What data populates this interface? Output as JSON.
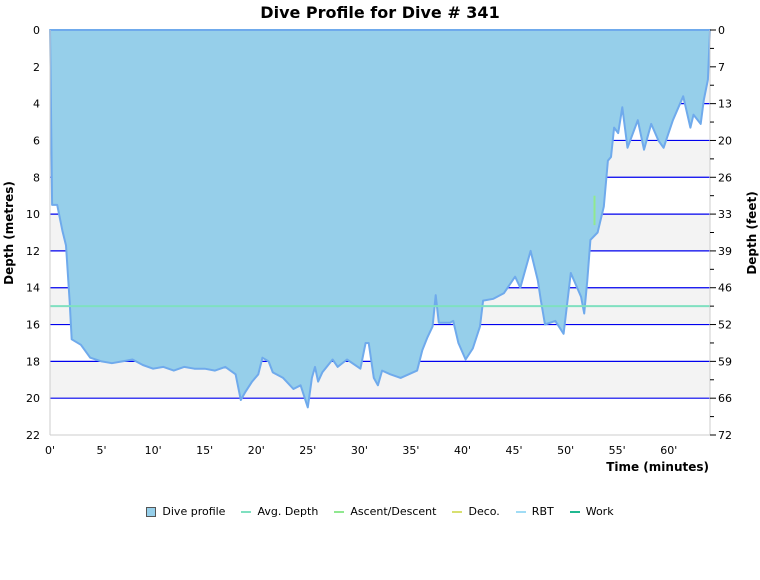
{
  "chart_data": {
    "type": "area",
    "title": "Dive Profile for Dive # 341",
    "xlabel": "Time (minutes)",
    "ylabel": "Depth (metres)",
    "ylabel_right": "Depth (feet)",
    "xlim": [
      0,
      64
    ],
    "ylim": [
      0,
      22
    ],
    "y_inverted": true,
    "x_ticks": [
      "0'",
      "5'",
      "10'",
      "15'",
      "20'",
      "25'",
      "30'",
      "35'",
      "40'",
      "45'",
      "50'",
      "55'",
      "60'"
    ],
    "x_tick_values": [
      0,
      5,
      10,
      15,
      20,
      25,
      30,
      35,
      40,
      45,
      50,
      55,
      60
    ],
    "y_ticks": [
      "0",
      "2",
      "4",
      "6",
      "8",
      "10",
      "12",
      "14",
      "16",
      "18",
      "20",
      "22"
    ],
    "y_tick_values": [
      0,
      2,
      4,
      6,
      8,
      10,
      12,
      14,
      16,
      18,
      20,
      22
    ],
    "y_right_ticks": [
      "0",
      "7",
      "13",
      "20",
      "26",
      "33",
      "39",
      "46",
      "52",
      "59",
      "66",
      "72"
    ],
    "grid": true,
    "shaded_bands": [
      [
        2,
        4
      ],
      [
        6,
        8
      ],
      [
        10,
        12
      ],
      [
        14,
        16
      ],
      [
        18,
        20
      ]
    ],
    "legend_position": "bottom",
    "legend": [
      {
        "name": "Dive profile",
        "color": "#96CFEA",
        "kind": "box"
      },
      {
        "name": "Avg. Depth",
        "color": "#7FE0C0",
        "kind": "line"
      },
      {
        "name": "Ascent/Descent",
        "color": "#90E890",
        "kind": "line"
      },
      {
        "name": "Deco.",
        "color": "#D8E070",
        "kind": "line"
      },
      {
        "name": "RBT",
        "color": "#A0DCF5",
        "kind": "line"
      },
      {
        "name": "Work",
        "color": "#20B890",
        "kind": "line"
      }
    ],
    "series": [
      {
        "name": "Dive profile",
        "color": "#96CFEA",
        "stroke": "#6FAAEC",
        "time": [
          0,
          0.05,
          0.2,
          0.7,
          1.2,
          1.55,
          1.9,
          2.1,
          3.0,
          3.9,
          5,
          6,
          7,
          8,
          9,
          10,
          11,
          12,
          13,
          14,
          15,
          16,
          17,
          18,
          18.5,
          18.9,
          19.6,
          20.2,
          20.6,
          21.2,
          21.6,
          22.6,
          23.6,
          24.3,
          25,
          25.4,
          25.7,
          26,
          26.4,
          27.4,
          27.9,
          28.8,
          30.1,
          30.6,
          30.9,
          31.4,
          31.8,
          32.2,
          33,
          34,
          35.6,
          36.1,
          36.6,
          37.1,
          37.4,
          37.7,
          38.8,
          39.1,
          39.6,
          40.3,
          41,
          41.7,
          42,
          43,
          44,
          45.1,
          45.6,
          46.6,
          47.3,
          47.6,
          48,
          49,
          49.8,
          50.5,
          51.5,
          51.8,
          52.1,
          52.4,
          53.1,
          53.7,
          54.1,
          54.4,
          54.7,
          55.1,
          55.5,
          56,
          57,
          57.6,
          58.3,
          59,
          59.5,
          60.4,
          61.4,
          62.1,
          62.4,
          63.1,
          63.4,
          63.8,
          64
        ],
        "depth": [
          0,
          2,
          9.5,
          9.5,
          10.9,
          11.7,
          14.7,
          16.8,
          17.1,
          17.8,
          18,
          18.1,
          18,
          17.9,
          18.2,
          18.4,
          18.3,
          18.5,
          18.3,
          18.4,
          18.4,
          18.5,
          18.3,
          18.7,
          20.1,
          19.7,
          19.1,
          18.7,
          17.8,
          18,
          18.6,
          18.9,
          19.5,
          19.3,
          20.5,
          18.9,
          18.3,
          19.1,
          18.6,
          17.9,
          18.3,
          17.9,
          18.4,
          17,
          17,
          18.9,
          19.3,
          18.5,
          18.7,
          18.9,
          18.5,
          17.4,
          16.7,
          16.1,
          14.4,
          15.9,
          15.9,
          15.8,
          17,
          17.9,
          17.3,
          16.1,
          14.7,
          14.6,
          14.3,
          13.4,
          14,
          12,
          13.6,
          14.7,
          16,
          15.8,
          16.5,
          13.2,
          14.5,
          15.4,
          13.6,
          11.4,
          11,
          9.6,
          7.1,
          6.9,
          5.3,
          5.6,
          4.2,
          6.4,
          4.9,
          6.5,
          5.1,
          6,
          6.4,
          4.9,
          3.6,
          5.3,
          4.6,
          5.1,
          3.8,
          2.7,
          0
        ]
      },
      {
        "name": "Avg. Depth",
        "color": "#7FE0C0",
        "time": [
          0,
          64
        ],
        "depth": [
          15,
          15
        ]
      },
      {
        "name": "Ascent/Descent",
        "color": "#90E890",
        "time": [
          52.8,
          52.8
        ],
        "depth": [
          9,
          10.6
        ]
      }
    ]
  }
}
